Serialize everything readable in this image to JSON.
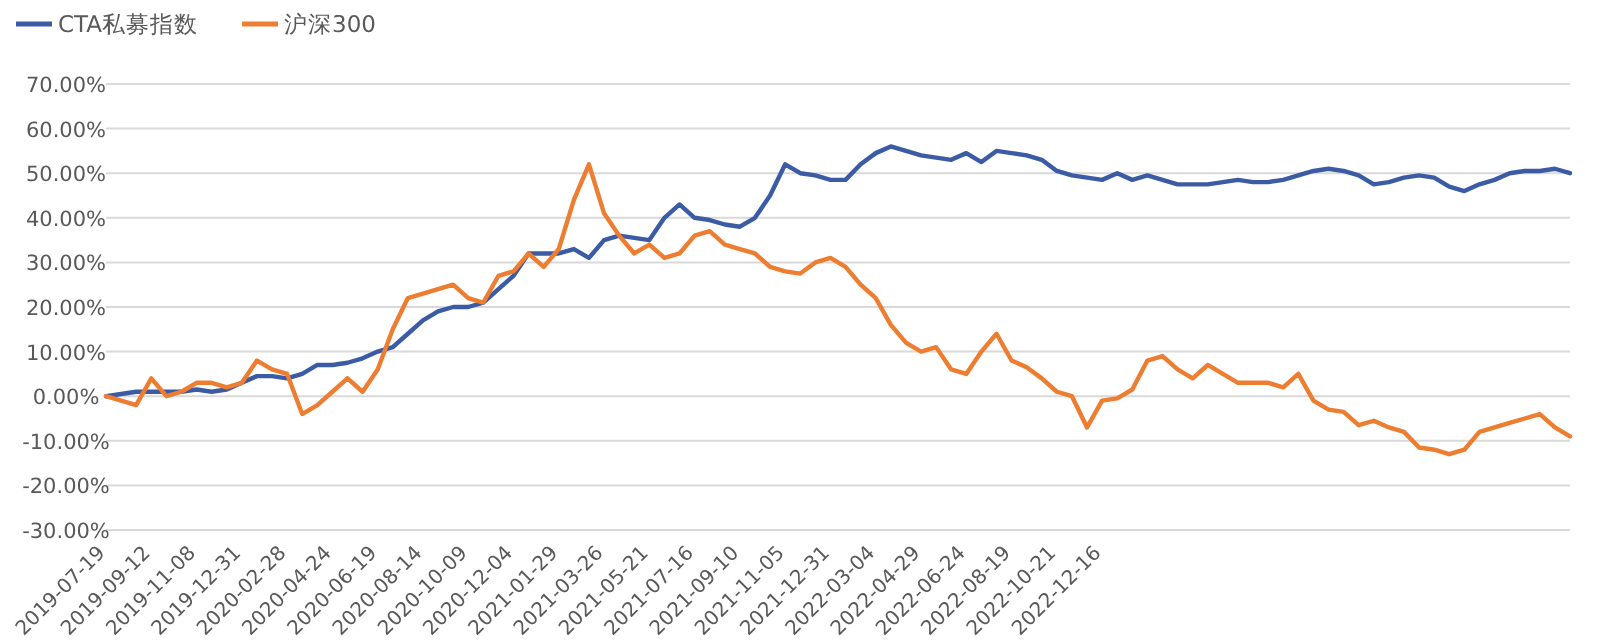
{
  "chart_data": {
    "type": "line",
    "categories": [
      "2019-07-19",
      null,
      null,
      "2019-09-12",
      null,
      null,
      "2019-11-08",
      null,
      null,
      "2019-12-31",
      null,
      null,
      "2020-02-28",
      null,
      null,
      "2020-04-24",
      null,
      null,
      "2020-06-19",
      null,
      null,
      "2020-08-14",
      null,
      null,
      "2020-10-09",
      null,
      null,
      "2020-12-04",
      null,
      null,
      "2021-01-29",
      null,
      null,
      "2021-03-26",
      null,
      null,
      "2021-05-21",
      null,
      null,
      "2021-07-16",
      null,
      null,
      "2021-09-10",
      null,
      null,
      "2021-11-05",
      null,
      null,
      "2021-12-31",
      null,
      null,
      "2022-03-04",
      null,
      null,
      "2022-04-29",
      null,
      null,
      "2022-06-24",
      null,
      null,
      "2022-08-19",
      null,
      null,
      "2022-10-21",
      null,
      null,
      "2022-12-16",
      null,
      null,
      null,
      null,
      null,
      null,
      null,
      null,
      null,
      null,
      null,
      null,
      null,
      null,
      null,
      null,
      null,
      null,
      null,
      null,
      null,
      null,
      null,
      null,
      null,
      null,
      null,
      null,
      null,
      null,
      null
    ],
    "series": [
      {
        "name": "CTA私募指数",
        "color": "#3b5ba5",
        "values": [
          0,
          0.5,
          1,
          1,
          1,
          1,
          1.5,
          1,
          1.5,
          3,
          4.5,
          4.5,
          4,
          5,
          7,
          7,
          7.5,
          8.5,
          10,
          11,
          14,
          17,
          19,
          20,
          20,
          21,
          24,
          27,
          32,
          32,
          32,
          33,
          31,
          35,
          36,
          35.5,
          35,
          40,
          43,
          40,
          39.5,
          38.5,
          38,
          40,
          45,
          52,
          50,
          49.5,
          48.5,
          48.5,
          52,
          54.5,
          56,
          55,
          54,
          53.5,
          53,
          54.5,
          52.5,
          55,
          54.5,
          54,
          53,
          50.5,
          49.5,
          49,
          48.5,
          50,
          48.5,
          49.5,
          48.5,
          47.5,
          47.5,
          47.5,
          48,
          48.5,
          48,
          48,
          48.5,
          49.5,
          50.5,
          51,
          50.5,
          49.5,
          47.5,
          48,
          49,
          49.5,
          49,
          47,
          46,
          47.5,
          48.5,
          50,
          50.5,
          50.5,
          51,
          50
        ]
      },
      {
        "name": "沪深300",
        "color": "#ed7d31",
        "values": [
          0,
          -1,
          -2,
          4,
          0,
          1,
          3,
          3,
          2,
          3,
          8,
          6,
          5,
          -4,
          -2,
          1,
          4,
          1,
          6,
          15,
          22,
          23,
          24,
          25,
          22,
          21,
          27,
          28,
          32,
          29,
          33,
          44,
          52,
          41,
          36,
          32,
          34,
          31,
          32,
          36,
          37,
          34,
          33,
          32,
          29,
          28,
          27.5,
          30,
          31,
          29,
          25,
          22,
          16,
          12,
          10,
          11,
          6,
          5,
          10,
          14,
          8,
          6.5,
          4,
          1,
          0,
          -7,
          -1,
          -0.5,
          1.5,
          8,
          9,
          6,
          4,
          7,
          5,
          3,
          3,
          3,
          2,
          5,
          -1,
          -3,
          -3.5,
          -6.5,
          -5.5,
          -7,
          -8,
          -11.5,
          -12,
          -13,
          -12,
          -8,
          -7,
          -6,
          -5,
          -4,
          -7,
          -9
        ]
      }
    ],
    "ylim": [
      -30,
      70
    ],
    "yticks": [
      {
        "value": -30,
        "label": "-30.00%"
      },
      {
        "value": -20,
        "label": "-20.00%"
      },
      {
        "value": -10,
        "label": "-10.00%"
      },
      {
        "value": 0,
        "label": "0.00%"
      },
      {
        "value": 10,
        "label": "10.00%"
      },
      {
        "value": 20,
        "label": "20.00%"
      },
      {
        "value": 30,
        "label": "30.00%"
      },
      {
        "value": 40,
        "label": "40.00%"
      },
      {
        "value": 50,
        "label": "50.00%"
      },
      {
        "value": 60,
        "label": "60.00%"
      },
      {
        "value": 70,
        "label": "70.00%"
      }
    ],
    "grid": "y",
    "legend": "top left",
    "marker": "none",
    "line_style": "solid"
  }
}
